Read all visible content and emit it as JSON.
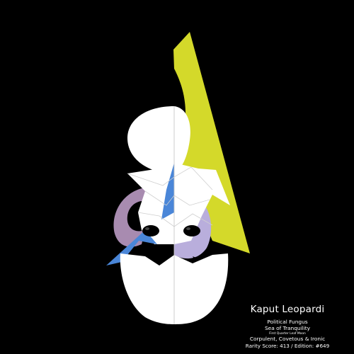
{
  "artwork": {
    "title": "Kaput Leopardi",
    "traits": [
      "Political Fungus",
      "Sea of Tranquility",
      "First Quarter Leaf Moon",
      "Corpulent, Covetous & Ironic"
    ],
    "rarity_line": "Rarity Score: 413 / Edition: #649",
    "colors": {
      "background": "#000000",
      "yellow": "#D4D92A",
      "white": "#FFFFFF",
      "blue": "#4A86D8",
      "lavender": "#B9AEDC",
      "mauve": "#A88BB0",
      "divider": "#C8C8C8"
    }
  }
}
